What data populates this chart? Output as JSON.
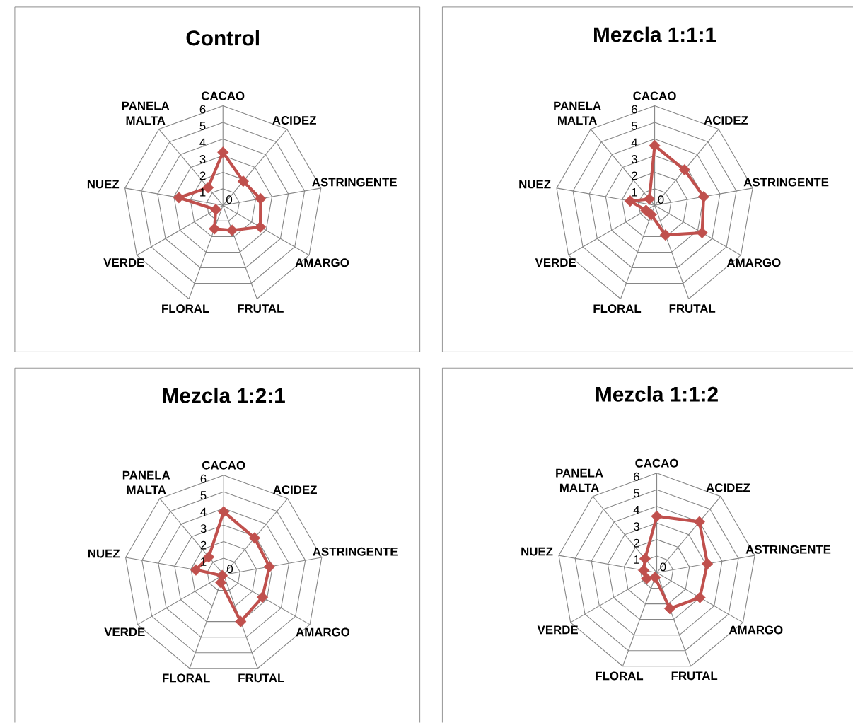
{
  "chart_data": [
    {
      "type": "radar",
      "title": "Control",
      "categories": [
        "CACAO",
        "ACIDEZ",
        "ASTRINGENTE",
        "AMARGO",
        "FRUTAL",
        "FLORAL",
        "VERDE",
        "NUEZ",
        "PANELA MALTA"
      ],
      "series": [
        {
          "color": "#c0504d",
          "values": [
            3.2,
            1.9,
            2.3,
            2.6,
            1.6,
            1.5,
            0.5,
            2.7,
            1.4
          ]
        }
      ],
      "ylim": [
        0,
        6
      ],
      "yticks": [
        0,
        1,
        2,
        3,
        4,
        5,
        6
      ],
      "grid": true,
      "marker": "diamond",
      "line_style": "solid"
    },
    {
      "type": "radar",
      "title": "Mezcla 1:1:1",
      "categories": [
        "CACAO",
        "ACIDEZ",
        "ASTRINGENTE",
        "AMARGO",
        "FRUTAL",
        "FLORAL",
        "VERDE",
        "NUEZ",
        "PANELA MALTA"
      ],
      "series": [
        {
          "color": "#c0504d",
          "values": [
            3.6,
            2.8,
            3.0,
            3.3,
            1.9,
            0.6,
            0.6,
            1.5,
            0.5
          ]
        }
      ],
      "ylim": [
        0,
        6
      ],
      "yticks": [
        0,
        1,
        2,
        3,
        4,
        5,
        6
      ],
      "grid": true,
      "marker": "diamond",
      "line_style": "solid"
    },
    {
      "type": "radar",
      "title": "Mezcla 1:2:1",
      "categories": [
        "CACAO",
        "ACIDEZ",
        "ASTRINGENTE",
        "AMARGO",
        "FRUTAL",
        "FLORAL",
        "VERDE",
        "NUEZ",
        "PANELA MALTA"
      ],
      "series": [
        {
          "color": "#c0504d",
          "values": [
            3.8,
            2.9,
            2.8,
            2.7,
            3.0,
            0.5,
            0.1,
            1.7,
            1.4
          ]
        }
      ],
      "ylim": [
        0,
        6
      ],
      "yticks": [
        0,
        1,
        2,
        3,
        4,
        5,
        6
      ],
      "grid": true,
      "marker": "diamond",
      "line_style": "solid"
    },
    {
      "type": "radar",
      "title": "Mezcla 1:1:2",
      "categories": [
        "CACAO",
        "ACIDEZ",
        "ASTRINGENTE",
        "AMARGO",
        "FRUTAL",
        "FLORAL",
        "VERDE",
        "NUEZ",
        "PANELA MALTA"
      ],
      "series": [
        {
          "color": "#c0504d",
          "values": [
            3.4,
            4.0,
            3.1,
            3.0,
            2.3,
            0.3,
            0.7,
            0.8,
            1.1
          ]
        }
      ],
      "ylim": [
        0,
        6
      ],
      "yticks": [
        0,
        1,
        2,
        3,
        4,
        5,
        6
      ],
      "grid": true,
      "marker": "diamond",
      "line_style": "solid"
    }
  ]
}
